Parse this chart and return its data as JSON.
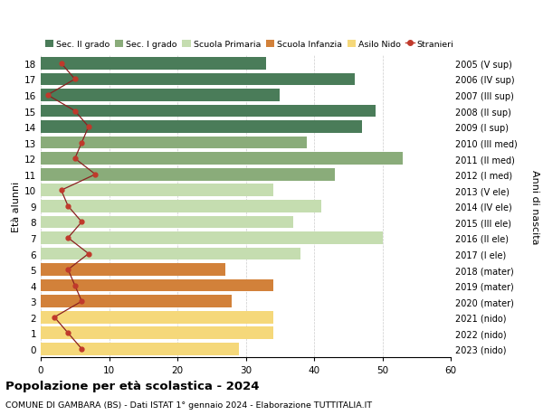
{
  "ages": [
    18,
    17,
    16,
    15,
    14,
    13,
    12,
    11,
    10,
    9,
    8,
    7,
    6,
    5,
    4,
    3,
    2,
    1,
    0
  ],
  "bar_values": [
    33,
    46,
    35,
    49,
    47,
    39,
    53,
    43,
    34,
    41,
    37,
    50,
    38,
    27,
    34,
    28,
    34,
    34,
    29
  ],
  "stranieri": [
    3,
    5,
    1,
    5,
    7,
    6,
    5,
    8,
    3,
    4,
    6,
    4,
    7,
    4,
    5,
    6,
    2,
    4,
    6
  ],
  "right_labels": [
    "2005 (V sup)",
    "2006 (IV sup)",
    "2007 (III sup)",
    "2008 (II sup)",
    "2009 (I sup)",
    "2010 (III med)",
    "2011 (II med)",
    "2012 (I med)",
    "2013 (V ele)",
    "2014 (IV ele)",
    "2015 (III ele)",
    "2016 (II ele)",
    "2017 (I ele)",
    "2018 (mater)",
    "2019 (mater)",
    "2020 (mater)",
    "2021 (nido)",
    "2022 (nido)",
    "2023 (nido)"
  ],
  "bar_colors_by_age": {
    "18": "#4a7c59",
    "17": "#4a7c59",
    "16": "#4a7c59",
    "15": "#4a7c59",
    "14": "#4a7c59",
    "13": "#8aac7a",
    "12": "#8aac7a",
    "11": "#8aac7a",
    "10": "#c5ddb0",
    "9": "#c5ddb0",
    "8": "#c5ddb0",
    "7": "#c5ddb0",
    "6": "#c5ddb0",
    "5": "#d2813a",
    "4": "#d2813a",
    "3": "#d2813a",
    "2": "#f5d87a",
    "1": "#f5d87a",
    "0": "#f5d87a"
  },
  "legend_labels": [
    "Sec. II grado",
    "Sec. I grado",
    "Scuola Primaria",
    "Scuola Infanzia",
    "Asilo Nido",
    "Stranieri"
  ],
  "legend_colors": [
    "#4a7c59",
    "#8aac7a",
    "#c5ddb0",
    "#d2813a",
    "#f5d87a",
    "#c0392b"
  ],
  "title": "Popolazione per età scolastica - 2024",
  "subtitle": "COMUNE DI GAMBARA (BS) - Dati ISTAT 1° gennaio 2024 - Elaborazione TUTTITALIA.IT",
  "ylabel_left": "Età alunni",
  "ylabel_right": "Anni di nascita",
  "xlim": [
    0,
    60
  ],
  "xticks": [
    0,
    10,
    20,
    30,
    40,
    50,
    60
  ],
  "stranieri_color": "#c0392b",
  "line_color": "#8b2020",
  "background_color": "#ffffff",
  "grid_color": "#cccccc"
}
